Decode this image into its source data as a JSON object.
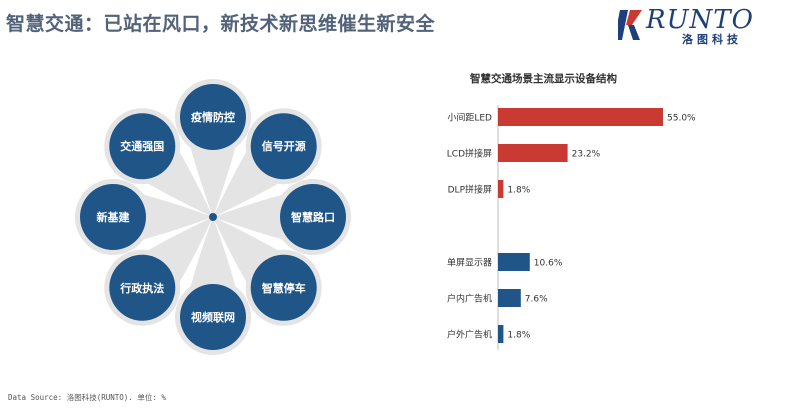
{
  "header": {
    "title": "智慧交通：已站在风口，新技术新思维催生新安全"
  },
  "logo": {
    "wordmark": "RUNTO",
    "chinese": "洛图科技"
  },
  "flower": {
    "petals": [
      {
        "label": "疫情防控"
      },
      {
        "label": "信号开源"
      },
      {
        "label": "智慧路口"
      },
      {
        "label": "智慧停车"
      },
      {
        "label": "视频联网"
      },
      {
        "label": "行政执法"
      },
      {
        "label": "新基建"
      },
      {
        "label": "交通强国"
      }
    ],
    "colors": {
      "circle": "#1f5587",
      "petal": "#e4e4e4",
      "center": "#1f5587"
    }
  },
  "chart_data": {
    "type": "bar",
    "orientation": "horizontal",
    "title": "智慧交通场景主流显示设备结构",
    "groups": [
      {
        "color": "#c83a32",
        "items": [
          {
            "category": "小间距LED",
            "value": 55.0,
            "label": "55.0%"
          },
          {
            "category": "LCD拼接屏",
            "value": 23.2,
            "label": "23.2%"
          },
          {
            "category": "DLP拼接屏",
            "value": 1.8,
            "label": "1.8%"
          }
        ]
      },
      {
        "color": "#1f5587",
        "items": [
          {
            "category": "单屏显示器",
            "value": 10.6,
            "label": "10.6%"
          },
          {
            "category": "户内广告机",
            "value": 7.6,
            "label": "7.6%"
          },
          {
            "category": "户外广告机",
            "value": 1.8,
            "label": "1.8%"
          }
        ]
      }
    ],
    "xlim": [
      0,
      55.0
    ],
    "xlabel": "",
    "ylabel": ""
  },
  "footer": {
    "source": "Data Source: 洛图科技(RUNTO). 单位: %"
  }
}
